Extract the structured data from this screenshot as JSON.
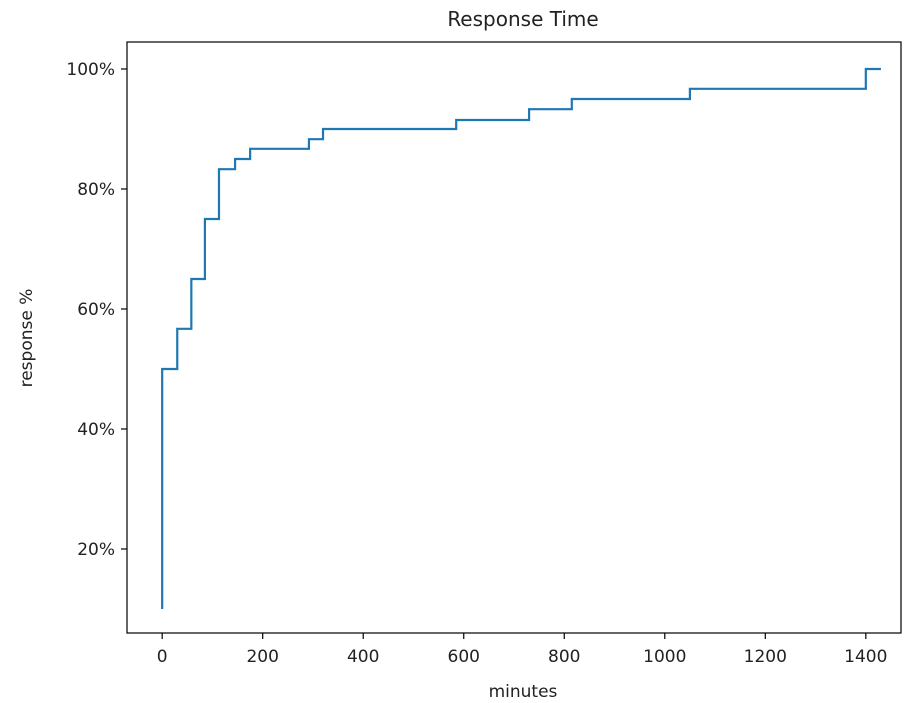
{
  "chart_data": {
    "type": "line",
    "step": true,
    "title": "Response Time",
    "xlabel": "minutes",
    "ylabel": "response %",
    "xlim": [
      -70,
      1470
    ],
    "ylim": [
      6,
      104.5
    ],
    "x_ticks": [
      0,
      200,
      400,
      600,
      800,
      1000,
      1200,
      1400
    ],
    "x_tick_labels": [
      "0",
      "200",
      "400",
      "600",
      "800",
      "1000",
      "1200",
      "1400"
    ],
    "y_ticks": [
      20,
      40,
      60,
      80,
      100
    ],
    "y_tick_labels": [
      "20%",
      "40%",
      "60%",
      "80%",
      "100%"
    ],
    "grid": false,
    "line_color": "#1f77b4",
    "series": [
      {
        "x": [
          0,
          0,
          30,
          58,
          85,
          113,
          145,
          175,
          292,
          320,
          585,
          730,
          815,
          1050,
          1400,
          1430
        ],
        "y": [
          10,
          50,
          56.7,
          65,
          75,
          83.3,
          85,
          86.7,
          88.3,
          90,
          91.5,
          93.3,
          95,
          96.7,
          100,
          100
        ]
      }
    ]
  }
}
